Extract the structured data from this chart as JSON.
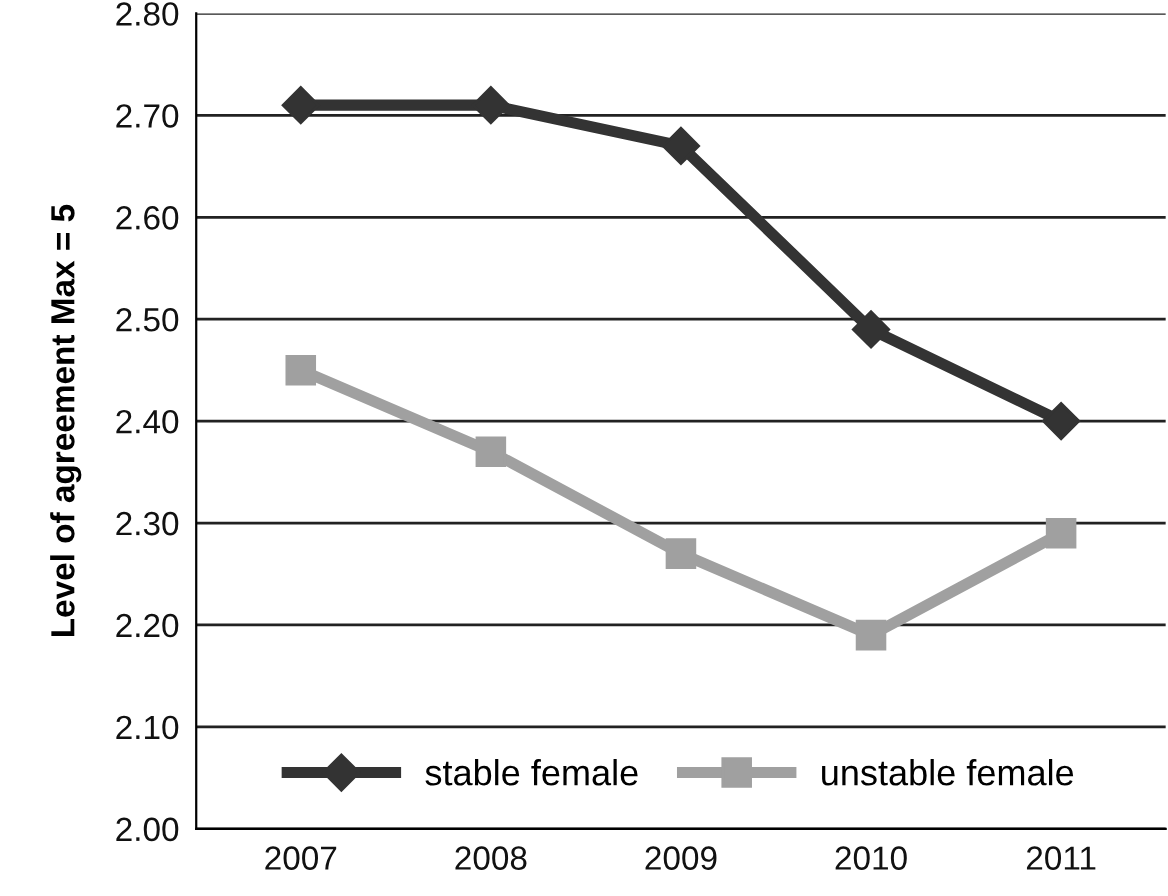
{
  "chart_data": {
    "type": "line",
    "ylabel": "Level of agreement Max = 5",
    "categories": [
      "2007",
      "2008",
      "2009",
      "2010",
      "2011"
    ],
    "series": [
      {
        "name": "stable female",
        "color": "#333333",
        "marker": "diamond",
        "values": [
          2.71,
          2.71,
          2.67,
          2.49,
          2.4
        ]
      },
      {
        "name": "unstable female",
        "color": "#a0a0a0",
        "marker": "square",
        "values": [
          2.45,
          2.37,
          2.27,
          2.19,
          2.29
        ]
      }
    ],
    "ylim": [
      2.0,
      2.8
    ],
    "yticks": [
      {
        "value": 2.0,
        "label": "2.00"
      },
      {
        "value": 2.1,
        "label": "2.10"
      },
      {
        "value": 2.2,
        "label": "2.20"
      },
      {
        "value": 2.3,
        "label": "2.30"
      },
      {
        "value": 2.4,
        "label": "2.40"
      },
      {
        "value": 2.5,
        "label": "2.50"
      },
      {
        "value": 2.6,
        "label": "2.60"
      },
      {
        "value": 2.7,
        "label": "2.70"
      },
      {
        "value": 2.8,
        "label": "2.80"
      }
    ],
    "grid": "y",
    "legend": "bottom",
    "line_style": "solid"
  }
}
